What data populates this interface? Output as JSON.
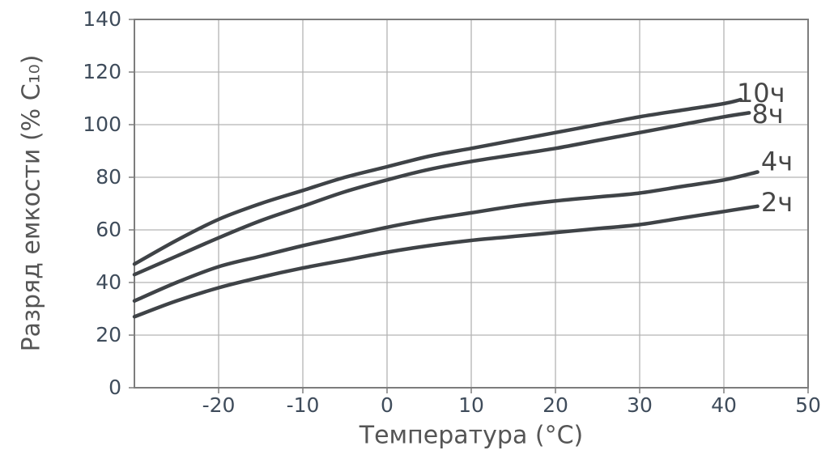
{
  "chart_data": {
    "type": "line",
    "title": "",
    "xlabel": "Температура (°C)",
    "ylabel": "Разряд емкости (% C₁₀)",
    "xlim": [
      -30,
      50
    ],
    "ylim": [
      0,
      140
    ],
    "x_ticks": [
      -20,
      -10,
      0,
      10,
      20,
      30,
      40,
      50
    ],
    "y_ticks": [
      0,
      20,
      40,
      60,
      80,
      100,
      120,
      140
    ],
    "grid": true,
    "legend_position": "right-of-curves",
    "series": [
      {
        "name": "10ч",
        "label_at": [
          44.4,
          112
        ],
        "points": [
          [
            -30,
            47
          ],
          [
            -25,
            56
          ],
          [
            -20,
            64
          ],
          [
            -15,
            70
          ],
          [
            -10,
            75
          ],
          [
            -5,
            80
          ],
          [
            0,
            84
          ],
          [
            5,
            88
          ],
          [
            10,
            91
          ],
          [
            15,
            94
          ],
          [
            20,
            97
          ],
          [
            25,
            100
          ],
          [
            30,
            103
          ],
          [
            35,
            105.5
          ],
          [
            40,
            108
          ],
          [
            42,
            109.5
          ]
        ]
      },
      {
        "name": "8ч",
        "label_at": [
          45.2,
          104
        ],
        "points": [
          [
            -30,
            43
          ],
          [
            -25,
            50
          ],
          [
            -20,
            57
          ],
          [
            -15,
            63.5
          ],
          [
            -10,
            69
          ],
          [
            -5,
            74.5
          ],
          [
            0,
            79
          ],
          [
            5,
            83
          ],
          [
            10,
            86
          ],
          [
            15,
            88.5
          ],
          [
            20,
            91
          ],
          [
            25,
            94
          ],
          [
            30,
            97
          ],
          [
            35,
            100
          ],
          [
            40,
            103
          ],
          [
            43,
            104.5
          ]
        ]
      },
      {
        "name": "4ч",
        "label_at": [
          46.3,
          86
        ],
        "points": [
          [
            -30,
            33
          ],
          [
            -25,
            40
          ],
          [
            -20,
            46
          ],
          [
            -15,
            50
          ],
          [
            -10,
            54
          ],
          [
            -5,
            57.5
          ],
          [
            0,
            61
          ],
          [
            5,
            64
          ],
          [
            10,
            66.5
          ],
          [
            15,
            69
          ],
          [
            20,
            71
          ],
          [
            25,
            72.5
          ],
          [
            30,
            74
          ],
          [
            35,
            76.5
          ],
          [
            40,
            79
          ],
          [
            44,
            82
          ]
        ]
      },
      {
        "name": "2ч",
        "label_at": [
          46.3,
          70.5
        ],
        "points": [
          [
            -30,
            27
          ],
          [
            -25,
            33
          ],
          [
            -20,
            38
          ],
          [
            -15,
            42
          ],
          [
            -10,
            45.5
          ],
          [
            -5,
            48.5
          ],
          [
            0,
            51.5
          ],
          [
            5,
            54
          ],
          [
            10,
            56
          ],
          [
            15,
            57.5
          ],
          [
            20,
            59
          ],
          [
            25,
            60.5
          ],
          [
            30,
            62
          ],
          [
            35,
            64.5
          ],
          [
            40,
            67
          ],
          [
            44,
            69
          ]
        ]
      }
    ],
    "colors": {
      "curve": "#3f4347",
      "grid": "#b3b3b3",
      "frame": "#7d7d7d",
      "tick_label": "#3f4c5b",
      "axis_label": "#555555",
      "series_label": "#474747",
      "background": "#ffffff"
    }
  }
}
